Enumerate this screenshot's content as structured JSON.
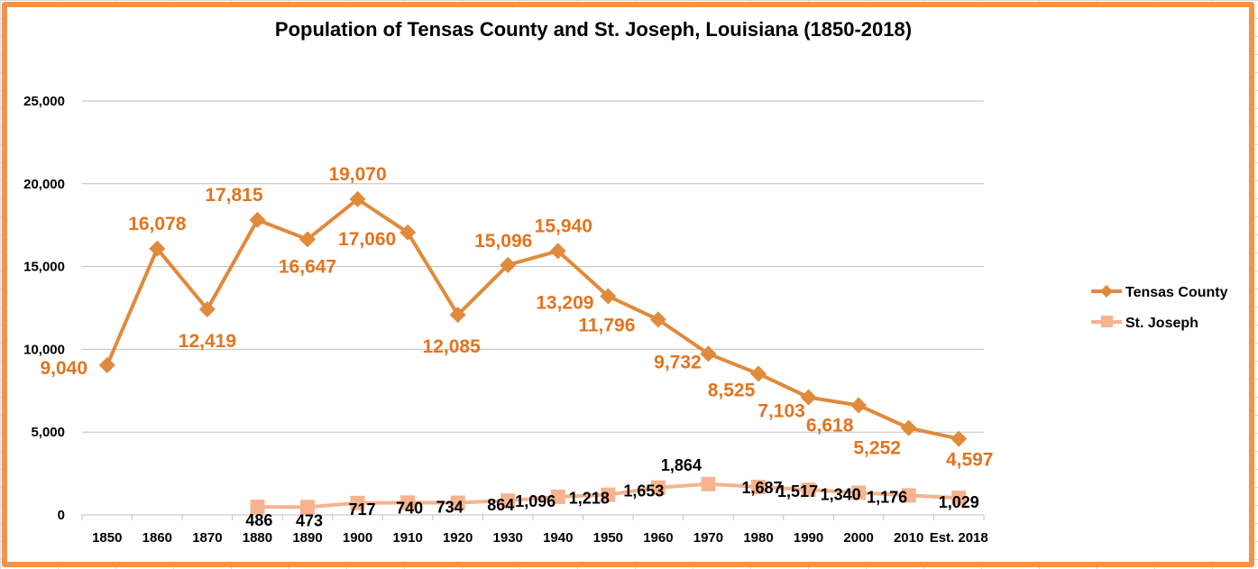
{
  "chart_data": {
    "type": "line",
    "title": "Population of Tensas County and St. Joseph, Louisiana (1850-2018)",
    "xlabel": "",
    "ylabel": "",
    "categories": [
      "1850",
      "1860",
      "1870",
      "1880",
      "1890",
      "1900",
      "1910",
      "1920",
      "1930",
      "1940",
      "1950",
      "1960",
      "1970",
      "1980",
      "1990",
      "2000",
      "2010",
      "Est. 2018"
    ],
    "ylim": [
      0,
      25000
    ],
    "yticks": [
      0,
      5000,
      10000,
      15000,
      20000,
      25000
    ],
    "ytick_labels": [
      "0",
      "5,000",
      "10,000",
      "15,000",
      "20,000",
      "25,000"
    ],
    "grid": true,
    "legend_position": "right",
    "series": [
      {
        "name": "Tensas County",
        "color": "#e08a3c",
        "label_color": "#e3741e",
        "marker": "diamond",
        "values": [
          9040,
          16078,
          12419,
          17815,
          16647,
          19070,
          17060,
          12085,
          15096,
          15940,
          13209,
          11796,
          9732,
          8525,
          7103,
          6618,
          5252,
          4597
        ],
        "labels": [
          "9,040",
          "16,078",
          "12,419",
          "17,815",
          "16,647",
          "19,070",
          "17,060",
          "12,085",
          "15,096",
          "15,940",
          "13,209",
          "11,796",
          "9,732",
          "8,525",
          "7,103",
          "6,618",
          "5,252",
          "4,597"
        ]
      },
      {
        "name": "St. Joseph",
        "color": "#f7b38e",
        "label_color": "#000000",
        "marker": "square",
        "values": [
          null,
          null,
          null,
          486,
          473,
          717,
          740,
          734,
          864,
          1096,
          1218,
          1653,
          1864,
          1687,
          1517,
          1340,
          1176,
          1029
        ],
        "labels": [
          "",
          "",
          "",
          "486",
          "473",
          "717",
          "740",
          "734",
          "864",
          "1,096",
          "1,218",
          "1,653",
          "1,864",
          "1,687",
          "1,517",
          "1,340",
          "1,176",
          "1,029"
        ]
      }
    ]
  }
}
